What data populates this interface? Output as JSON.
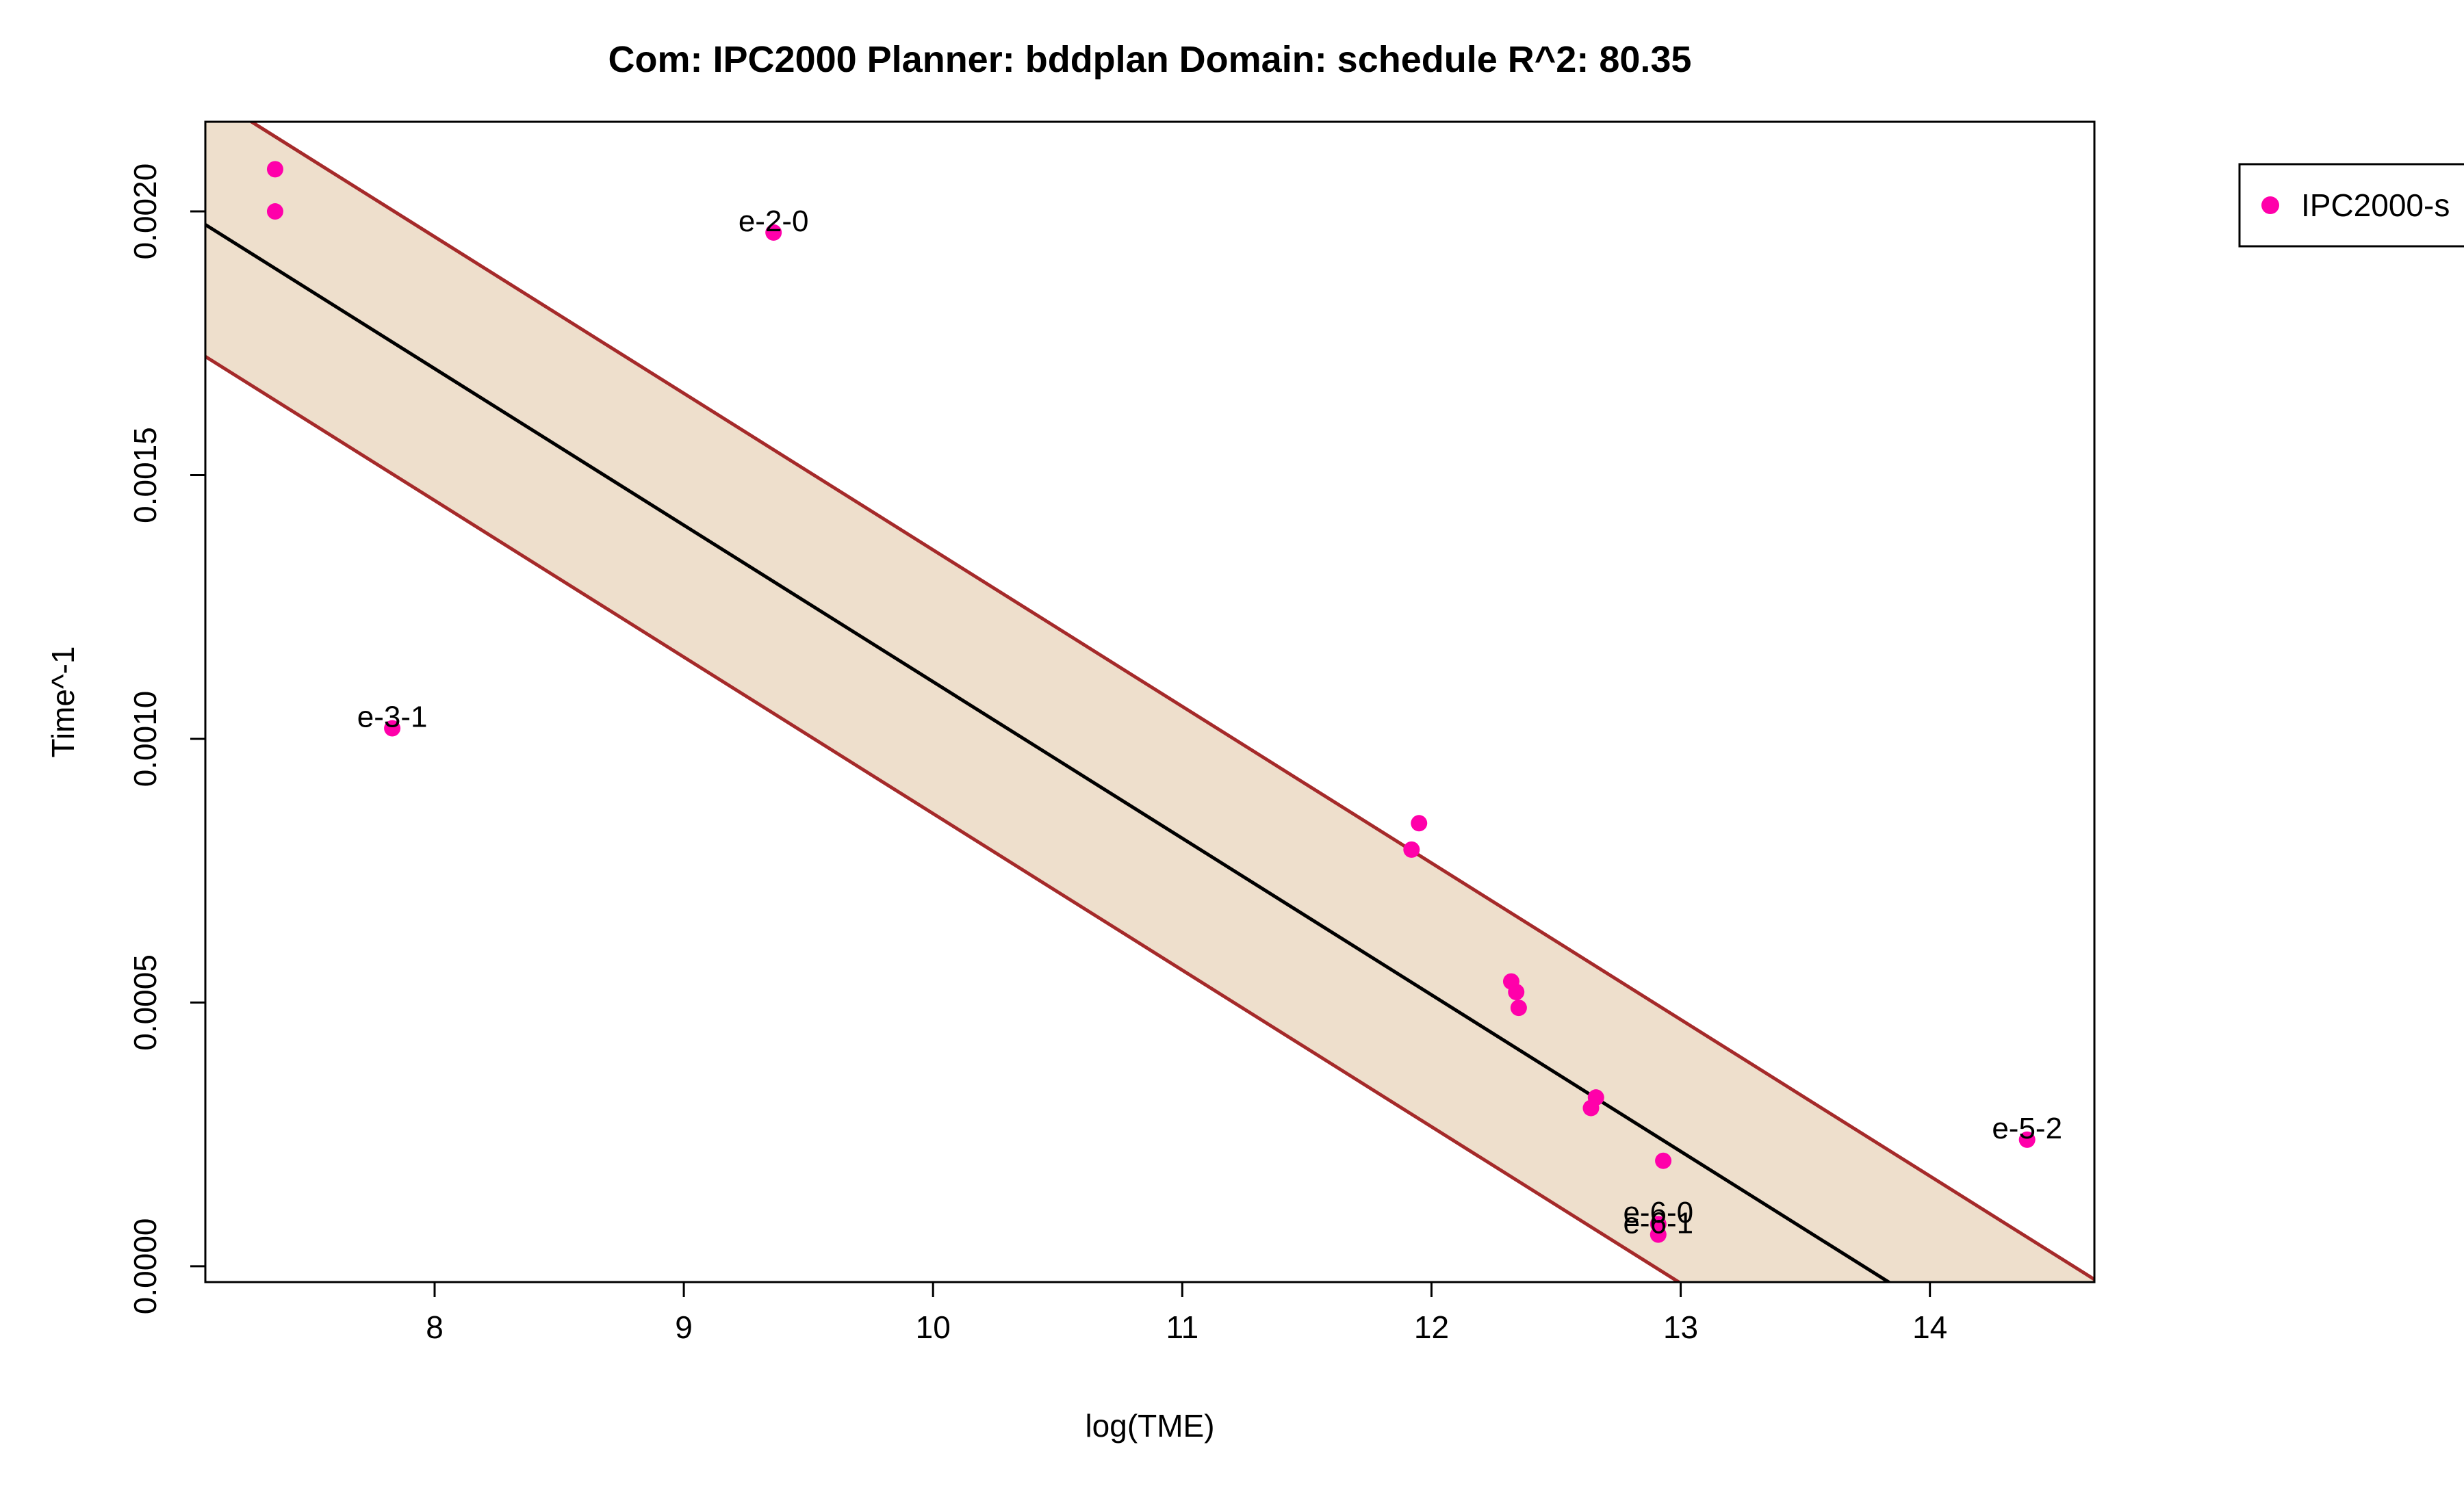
{
  "chart_data": {
    "type": "scatter",
    "title": "Com: IPC2000 Planner: bddplan Domain: schedule R^2: 80.35",
    "xlabel": "log(TME)",
    "ylabel": "Time^-1",
    "xlim": [
      7.08,
      14.66
    ],
    "ylim": [
      -3e-05,
      0.00217
    ],
    "x_ticks": [
      "8",
      "9",
      "10",
      "11",
      "12",
      "13",
      "14"
    ],
    "y_ticks": [
      "0.0000",
      "0.0005",
      "0.0010",
      "0.0015",
      "0.0020"
    ],
    "grid": false,
    "legend": {
      "position": "right-outside",
      "entries": [
        "IPC2000-s"
      ]
    },
    "series": [
      {
        "name": "IPC2000-s",
        "color": "#ff00aa",
        "points": [
          {
            "x": 7.36,
            "y": 0.00208,
            "label": ""
          },
          {
            "x": 7.36,
            "y": 0.002,
            "label": ""
          },
          {
            "x": 7.83,
            "y": 0.00102,
            "label": "e-3-1"
          },
          {
            "x": 9.36,
            "y": 0.00196,
            "label": "e-2-0"
          },
          {
            "x": 11.92,
            "y": 0.00079,
            "label": ""
          },
          {
            "x": 11.95,
            "y": 0.00084,
            "label": ""
          },
          {
            "x": 12.32,
            "y": 0.00054,
            "label": ""
          },
          {
            "x": 12.34,
            "y": 0.00052,
            "label": ""
          },
          {
            "x": 12.35,
            "y": 0.00049,
            "label": ""
          },
          {
            "x": 12.64,
            "y": 0.0003,
            "label": ""
          },
          {
            "x": 12.66,
            "y": 0.00032,
            "label": ""
          },
          {
            "x": 12.91,
            "y": 6e-05,
            "label": "e-6-1"
          },
          {
            "x": 12.91,
            "y": 8e-05,
            "label": "e-6-0"
          },
          {
            "x": 12.93,
            "y": 0.0002,
            "label": ""
          },
          {
            "x": 14.39,
            "y": 0.00024,
            "label": "e-5-2"
          }
        ]
      }
    ],
    "fit_line": {
      "color": "#000000",
      "points": [
        [
          7.08,
          0.001975
        ],
        [
          14.66,
          -0.000275
        ]
      ]
    },
    "band": {
      "fill": "#eedfcc",
      "line_color": "#a52a2a",
      "upper": [
        [
          7.08,
          0.002225
        ],
        [
          14.66,
          -2.5e-05
        ]
      ],
      "lower": [
        [
          7.08,
          0.001725
        ],
        [
          14.66,
          -0.000525
        ]
      ]
    }
  }
}
